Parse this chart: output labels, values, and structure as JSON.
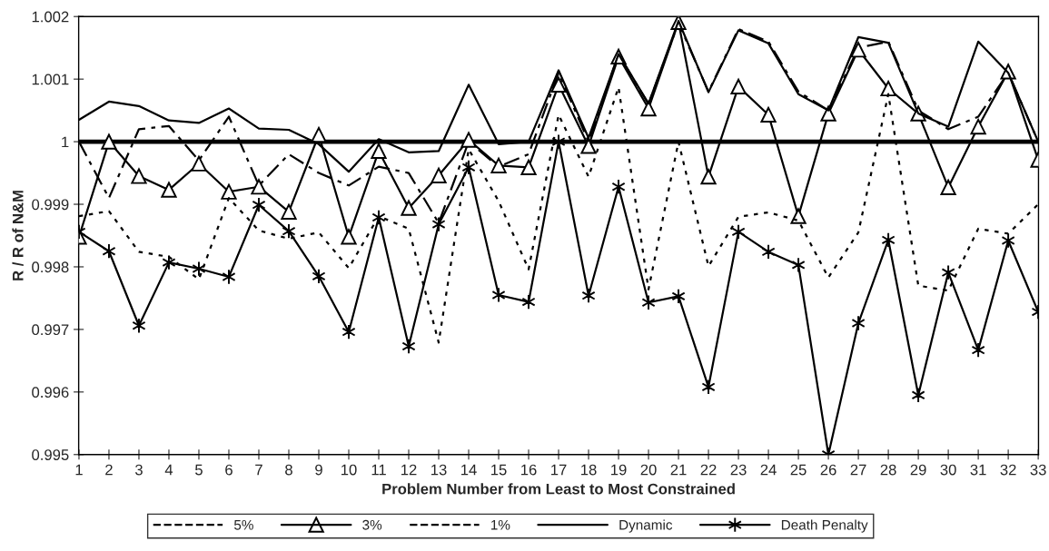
{
  "chart_data": {
    "type": "line",
    "xlabel": "Problem Number from Least to Most Constrained",
    "ylabel": "R / R of N&M",
    "categories": [
      "1",
      "2",
      "3",
      "4",
      "5",
      "6",
      "7",
      "8",
      "9",
      "10",
      "11",
      "12",
      "13",
      "14",
      "15",
      "16",
      "17",
      "18",
      "19",
      "20",
      "21",
      "22",
      "23",
      "24",
      "25",
      "26",
      "27",
      "28",
      "29",
      "30",
      "31",
      "32",
      "33"
    ],
    "series": [
      {
        "name": "5%",
        "color": "#000000",
        "line_style": "dashed",
        "marker": "none",
        "values": [
          1.0,
          0.9991,
          1.0002,
          1.00025,
          0.9997,
          1.0004,
          0.9993,
          0.9998,
          0.9995,
          0.9993,
          0.9996,
          0.9995,
          0.9987,
          1.0,
          0.9996,
          0.9998,
          1.0011,
          1.0,
          1.0014,
          1.0006,
          1.0019,
          1.0008,
          1.0018,
          1.0016,
          1.0008,
          1.0005,
          1.0015,
          1.0016,
          1.0005,
          1.0002,
          1.0004,
          1.0011,
          1.0
        ]
      },
      {
        "name": "3%",
        "color": "#000000",
        "line_style": "solid",
        "marker": "triangle",
        "values": [
          0.99848,
          1.0,
          0.99945,
          0.99923,
          0.99965,
          0.9992,
          0.99928,
          0.99888,
          1.00011,
          0.99848,
          0.99985,
          0.99894,
          0.99946,
          1.00003,
          0.99962,
          0.99959,
          1.00091,
          0.99993,
          1.00136,
          1.00053,
          1.00191,
          0.99944,
          1.00088,
          1.00043,
          0.99881,
          1.00045,
          1.00147,
          1.00085,
          1.00045,
          0.99927,
          1.00024,
          1.00112,
          0.99971
        ]
      },
      {
        "name": "1%",
        "color": "#000000",
        "line_style": "dotted",
        "marker": "none",
        "values": [
          0.99881,
          0.99889,
          0.99824,
          0.99816,
          0.9978,
          0.9991,
          0.99858,
          0.99845,
          0.99855,
          0.99798,
          0.99881,
          0.99861,
          0.99679,
          0.99988,
          0.99905,
          0.99796,
          1.00043,
          0.99944,
          1.00087,
          0.99764,
          1.0,
          0.99801,
          0.9988,
          0.99887,
          0.99874,
          0.99783,
          0.99855,
          1.00076,
          0.9977,
          0.99762,
          0.99861,
          0.99853,
          0.999
        ]
      },
      {
        "name": "Dynamic",
        "color": "#000000",
        "line_style": "solid",
        "marker": "none",
        "values": [
          1.00035,
          1.00064,
          1.00057,
          1.00034,
          1.0003,
          1.00053,
          1.00021,
          1.00019,
          0.99996,
          0.99952,
          1.00004,
          0.99983,
          0.99985,
          1.00091,
          0.99996,
          1.0,
          1.00114,
          1.00006,
          1.0014,
          1.00061,
          1.00193,
          1.00079,
          1.00178,
          1.00157,
          1.00076,
          1.0005,
          1.00167,
          1.00158,
          1.00045,
          1.00024,
          1.0016,
          1.0011,
          1.0
        ]
      },
      {
        "name": "Death Penalty",
        "color": "#000000",
        "line_style": "solid",
        "marker": "cross",
        "values": [
          0.99856,
          0.99825,
          0.99706,
          0.99807,
          0.99797,
          0.99784,
          0.99899,
          0.99857,
          0.99785,
          0.99696,
          0.99879,
          0.99673,
          0.99868,
          0.99959,
          0.99755,
          0.99744,
          1.0,
          0.99754,
          0.99928,
          0.99743,
          0.99753,
          0.99608,
          0.99856,
          0.99824,
          0.99803,
          0.995,
          0.9971,
          0.99843,
          0.99595,
          0.99791,
          0.99667,
          0.99842,
          0.99728
        ]
      }
    ],
    "ylim": [
      0.995,
      1.002
    ],
    "yticks": [
      0.995,
      0.996,
      0.997,
      0.998,
      0.999,
      1,
      1.001,
      1.002
    ],
    "ref_lines": [
      {
        "axis": "y",
        "value": 1,
        "color": "#000000",
        "line_style": "solid"
      }
    ],
    "grid": false,
    "legend": "bottom"
  }
}
